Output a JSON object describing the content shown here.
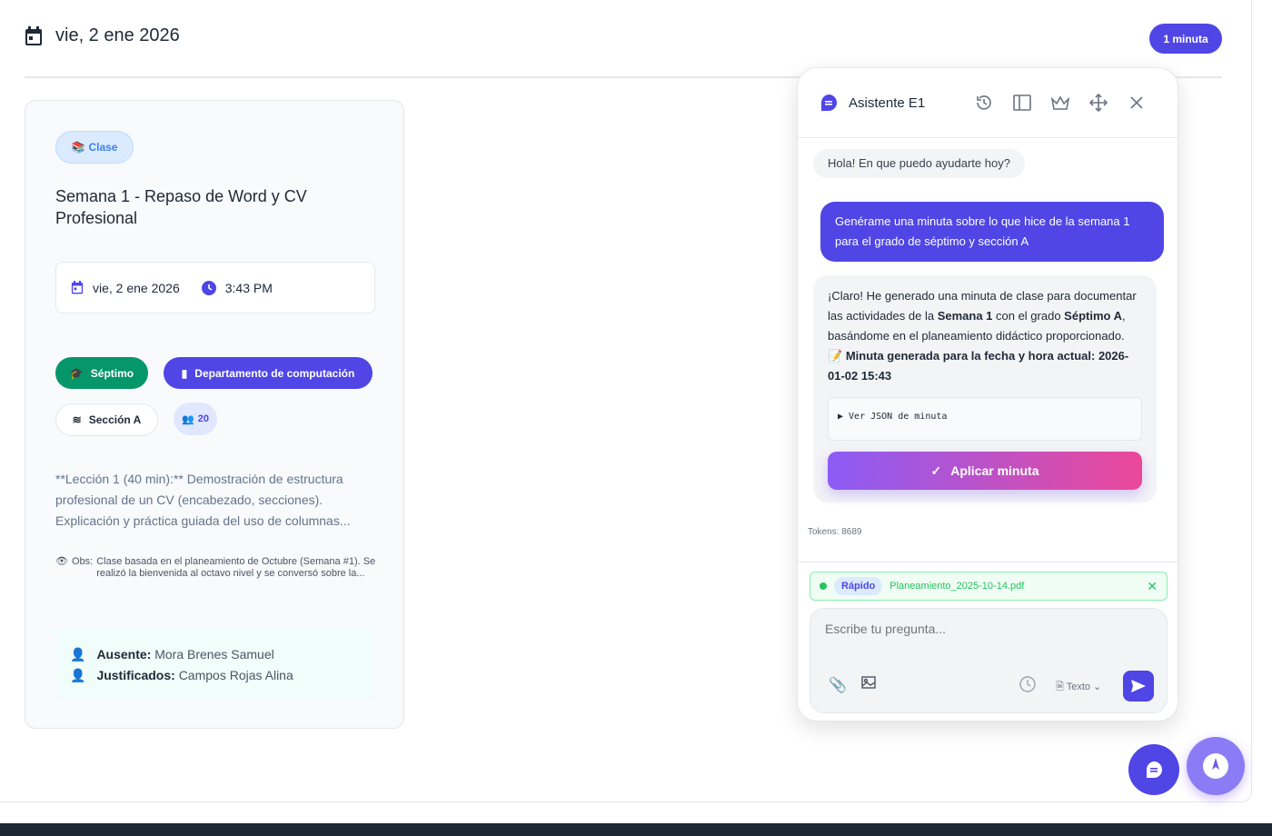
{
  "header": {
    "date": "vie, 2 ene 2026",
    "badge": "1 minuta"
  },
  "card": {
    "type_chip": "Clase",
    "title": "Semana 1 - Repaso de Word y CV Profesional",
    "date": "vie, 2 ene 2026",
    "time": "3:43 PM",
    "grade": "Séptimo",
    "department": "Departamento de computación",
    "section": "Sección A",
    "students": "20",
    "description": "**Lección 1 (40 min):** Demostración de estructura profesional de un CV (encabezado, secciones). Explicación y práctica guiada del uso de columnas...",
    "obs_label": "Obs:",
    "obs": "Clase basada en el planeamiento de Octubre (Semana #1). Se realizó la bienvenida al octavo nivel y se conversó sobre la...",
    "absent_label": "Ausente:",
    "absent": "Mora Brenes Samuel",
    "justified_label": "Justificados:",
    "justified": "Campos Rojas Alina"
  },
  "assistant": {
    "title": "Asistente E1",
    "greeting": "Hola! En que puedo ayudarte hoy?",
    "user_msg": "Genérame una minuta sobre lo que hice de la semana 1 para el grado de séptimo y sección A",
    "reply": {
      "p1": "¡Claro! He generado una minuta de clase para documentar las actividades de la ",
      "b1": "Semana 1",
      "p2": " con el grado ",
      "b2": "Séptimo A",
      "p3": ", basándome en el planeamiento didáctico proporcionado.",
      "b3": "Minuta generada para la fecha y hora actual: 2026-01-02 15:43",
      "json_toggle": "▶ Ver JSON de minuta",
      "apply": "Aplicar minuta"
    },
    "tokens": "Tokens: 8689",
    "mode": "Rápido",
    "file": "Planeamiento_2025-10-14.pdf",
    "placeholder": "Escribe tu pregunta...",
    "format": "Texto"
  },
  "colors": {
    "primary": "#4f46e5",
    "green": "#10b981",
    "gradient_start": "#8b5cf6",
    "gradient_end": "#ec4899"
  }
}
